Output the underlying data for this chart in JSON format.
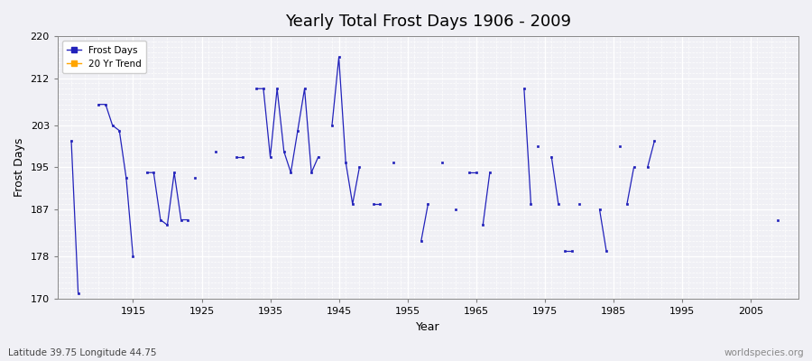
{
  "title": "Yearly Total Frost Days 1906 - 2009",
  "xlabel": "Year",
  "ylabel": "Frost Days",
  "xlim": [
    1904,
    2012
  ],
  "ylim": [
    170,
    220
  ],
  "yticks": [
    170,
    178,
    187,
    195,
    203,
    212,
    220
  ],
  "xticks": [
    1915,
    1925,
    1935,
    1945,
    1955,
    1965,
    1975,
    1985,
    1995,
    2005
  ],
  "bg_color": "#f0f0f5",
  "plot_bg_color": "#f0f0f5",
  "line_color": "#2222bb",
  "marker_color": "#2222bb",
  "grid_color": "#ffffff",
  "legend_frost_color": "#2222bb",
  "legend_trend_color": "#ffa500",
  "subtitle": "Latitude 39.75 Longitude 44.75",
  "watermark": "worldspecies.org",
  "segments": [
    {
      "years": [
        1906,
        1907
      ],
      "values": [
        200,
        171
      ]
    },
    {
      "years": [
        1910,
        1911,
        1912,
        1913,
        1914,
        1915
      ],
      "values": [
        207,
        207,
        203,
        202,
        193,
        178
      ]
    },
    {
      "years": [
        1917,
        1918,
        1919,
        1920,
        1921,
        1922,
        1923
      ],
      "values": [
        194,
        194,
        185,
        184,
        194,
        185,
        185
      ]
    },
    {
      "years": [
        1924
      ],
      "values": [
        193
      ]
    },
    {
      "years": [
        1927
      ],
      "values": [
        198
      ]
    },
    {
      "years": [
        1930,
        1931
      ],
      "values": [
        197,
        197
      ]
    },
    {
      "years": [
        1933,
        1934,
        1935,
        1936,
        1937,
        1938,
        1939,
        1940,
        1941,
        1942
      ],
      "values": [
        210,
        210,
        197,
        210,
        198,
        194,
        202,
        210,
        194,
        197
      ]
    },
    {
      "years": [
        1944,
        1945,
        1946,
        1947,
        1948
      ],
      "values": [
        203,
        216,
        196,
        188,
        195
      ]
    },
    {
      "years": [
        1950,
        1951
      ],
      "values": [
        188,
        188
      ]
    },
    {
      "years": [
        1953
      ],
      "values": [
        196
      ]
    },
    {
      "years": [
        1957,
        1958
      ],
      "values": [
        181,
        188
      ]
    },
    {
      "years": [
        1960
      ],
      "values": [
        196
      ]
    },
    {
      "years": [
        1962
      ],
      "values": [
        187
      ]
    },
    {
      "years": [
        1964,
        1965
      ],
      "values": [
        194,
        194
      ]
    },
    {
      "years": [
        1966,
        1967
      ],
      "values": [
        184,
        194
      ]
    },
    {
      "years": [
        1972,
        1973
      ],
      "values": [
        210,
        188
      ]
    },
    {
      "years": [
        1974
      ],
      "values": [
        199
      ]
    },
    {
      "years": [
        1976,
        1977
      ],
      "values": [
        197,
        188
      ]
    },
    {
      "years": [
        1978,
        1979
      ],
      "values": [
        179,
        179
      ]
    },
    {
      "years": [
        1980
      ],
      "values": [
        188
      ]
    },
    {
      "years": [
        1983,
        1984
      ],
      "values": [
        187,
        179
      ]
    },
    {
      "years": [
        1986
      ],
      "values": [
        199
      ]
    },
    {
      "years": [
        1987,
        1988
      ],
      "values": [
        188,
        195
      ]
    },
    {
      "years": [
        1990,
        1991
      ],
      "values": [
        195,
        200
      ]
    },
    {
      "years": [
        2009
      ],
      "values": [
        185
      ]
    }
  ]
}
